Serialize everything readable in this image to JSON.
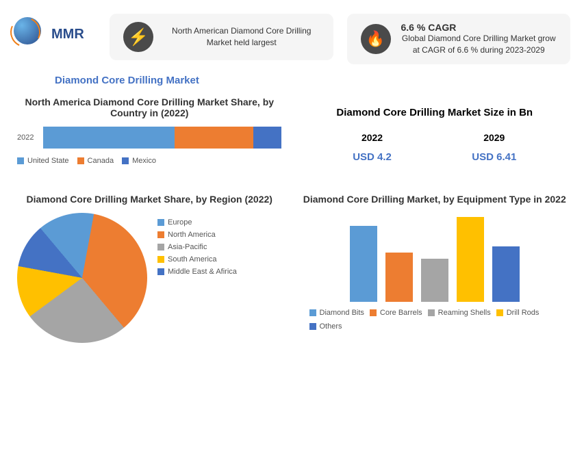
{
  "logo": {
    "text": "MMR"
  },
  "card1": {
    "text": "North American Diamond Core Drilling Market held largest",
    "icon": "bolt-icon"
  },
  "card2": {
    "title": "6.6 % CAGR",
    "text": "Global Diamond Core Drilling Market grow at CAGR of 6.6 % during 2023-2029",
    "icon": "flame-icon"
  },
  "main_title": "Diamond Core Drilling Market",
  "stacked_chart": {
    "title": "North America Diamond Core Drilling Market Share, by Country in (2022)",
    "y_label": "2022",
    "segments": [
      {
        "label": "United State",
        "value": 55,
        "color": "#5b9bd5"
      },
      {
        "label": "Canada",
        "value": 33,
        "color": "#ed7d31"
      },
      {
        "label": "Mexico",
        "value": 12,
        "color": "#4472c4"
      }
    ]
  },
  "market_size": {
    "title": "Diamond Core Drilling Market Size in Bn",
    "items": [
      {
        "year": "2022",
        "value": "USD 4.2"
      },
      {
        "year": "2029",
        "value": "USD 6.41"
      }
    ]
  },
  "pie_chart": {
    "title": "Diamond Core Drilling Market Share, by Region (2022)",
    "slices": [
      {
        "label": "Europe",
        "value": 14,
        "color": "#5b9bd5"
      },
      {
        "label": "North America",
        "value": 36,
        "color": "#ed7d31"
      },
      {
        "label": "Asia-Pacific",
        "value": 26,
        "color": "#a5a5a5"
      },
      {
        "label": "South America",
        "value": 13,
        "color": "#ffc000"
      },
      {
        "label": "Middle East & Afirica",
        "value": 11,
        "color": "#4472c4"
      }
    ]
  },
  "bar_chart": {
    "title": "Diamond Core Drilling Market, by Equipment Type in 2022",
    "bars": [
      {
        "label": "Diamond Bits",
        "value": 85,
        "color": "#5b9bd5"
      },
      {
        "label": "Core Barrels",
        "value": 55,
        "color": "#ed7d31"
      },
      {
        "label": "Reaming Shells",
        "value": 48,
        "color": "#a5a5a5"
      },
      {
        "label": "Drill Rods",
        "value": 95,
        "color": "#ffc000"
      },
      {
        "label": "Others",
        "value": 62,
        "color": "#4472c4"
      }
    ]
  },
  "colors": {
    "title": "#4472c4",
    "card_bg": "#f5f5f5",
    "icon_bg": "#4a4a4a"
  }
}
